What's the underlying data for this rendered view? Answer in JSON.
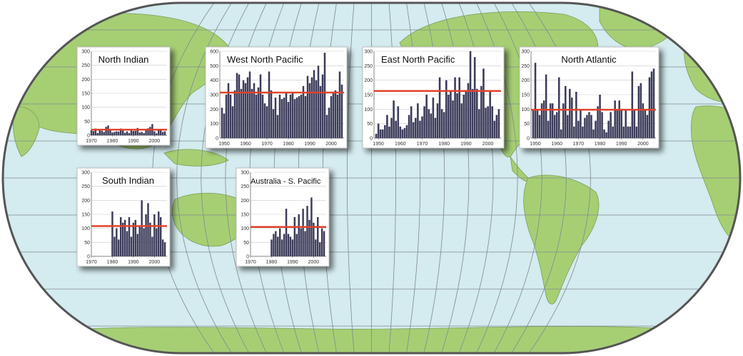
{
  "colors": {
    "ocean": "#d4ebef",
    "land": "#a6cf74",
    "land_edge": "#789f55",
    "grid": "#7f8a8e",
    "bar": "#3b3b5a",
    "average_line": "#e1432b",
    "panel_bg": "#ffffff",
    "gridline": "#c9c9c9"
  },
  "chart_data": [
    {
      "type": "bar",
      "title": "North Indian",
      "xlabel": "",
      "ylabel": "",
      "xlim": [
        1970,
        2006
      ],
      "ylim": [
        0,
        300
      ],
      "x_ticks": [
        "1970",
        "1980",
        "1990",
        "2000"
      ],
      "y_ticks": [
        "0",
        "50",
        "100",
        "150",
        "200",
        "250",
        "300"
      ],
      "x": [
        1970,
        1971,
        1972,
        1973,
        1974,
        1975,
        1976,
        1977,
        1978,
        1979,
        1980,
        1981,
        1982,
        1983,
        1984,
        1985,
        1986,
        1987,
        1988,
        1989,
        1990,
        1991,
        1992,
        1993,
        1994,
        1995,
        1996,
        1997,
        1998,
        1999,
        2000,
        2001,
        2002,
        2003,
        2004,
        2005
      ],
      "values": [
        18,
        15,
        24,
        8,
        22,
        16,
        12,
        30,
        35,
        18,
        10,
        12,
        14,
        13,
        24,
        17,
        9,
        14,
        8,
        20,
        15,
        16,
        26,
        10,
        12,
        8,
        20,
        25,
        30,
        40,
        14,
        7,
        22,
        18,
        12,
        14
      ],
      "average": 20
    },
    {
      "type": "bar",
      "title": "West North Pacific",
      "xlabel": "",
      "ylabel": "",
      "xlim": [
        1948,
        2006
      ],
      "ylim": [
        0,
        600
      ],
      "x_ticks": [
        "1950",
        "1960",
        "1970",
        "1980",
        "1990",
        "2000"
      ],
      "y_ticks": [
        "0",
        "100",
        "200",
        "300",
        "400",
        "500",
        "600"
      ],
      "x": [
        1949,
        1950,
        1951,
        1952,
        1953,
        1954,
        1955,
        1956,
        1957,
        1958,
        1959,
        1960,
        1961,
        1962,
        1963,
        1964,
        1965,
        1966,
        1967,
        1968,
        1969,
        1970,
        1971,
        1972,
        1973,
        1974,
        1975,
        1976,
        1977,
        1978,
        1979,
        1980,
        1981,
        1982,
        1983,
        1984,
        1985,
        1986,
        1987,
        1988,
        1989,
        1990,
        1991,
        1992,
        1993,
        1994,
        1995,
        1996,
        1997,
        1998,
        1999,
        2000,
        2001,
        2002,
        2003,
        2004,
        2005
      ],
      "values": [
        210,
        170,
        300,
        380,
        300,
        220,
        330,
        450,
        440,
        340,
        400,
        380,
        420,
        460,
        340,
        380,
        300,
        350,
        440,
        300,
        240,
        220,
        460,
        330,
        200,
        280,
        160,
        300,
        270,
        280,
        320,
        250,
        300,
        310,
        270,
        280,
        290,
        300,
        360,
        290,
        430,
        380,
        420,
        470,
        400,
        500,
        360,
        440,
        590,
        160,
        210,
        290,
        320,
        330,
        300,
        460,
        370
      ],
      "average": 315
    },
    {
      "type": "bar",
      "title": "East North Pacific",
      "xlabel": "",
      "ylabel": "",
      "xlim": [
        1948,
        2006
      ],
      "ylim": [
        0,
        300
      ],
      "x_ticks": [
        "1950",
        "1960",
        "1970",
        "1980",
        "1990",
        "2000"
      ],
      "y_ticks": [
        "0",
        "50",
        "100",
        "150",
        "200",
        "250",
        "300"
      ],
      "x": [
        1949,
        1950,
        1951,
        1952,
        1953,
        1954,
        1955,
        1956,
        1957,
        1958,
        1959,
        1960,
        1961,
        1962,
        1963,
        1964,
        1965,
        1966,
        1967,
        1968,
        1969,
        1970,
        1971,
        1972,
        1973,
        1974,
        1975,
        1976,
        1977,
        1978,
        1979,
        1980,
        1981,
        1982,
        1983,
        1984,
        1985,
        1986,
        1987,
        1988,
        1989,
        1990,
        1991,
        1992,
        1993,
        1994,
        1995,
        1996,
        1997,
        1998,
        1999,
        2000,
        2001,
        2002,
        2003,
        2004,
        2005
      ],
      "values": [
        15,
        50,
        30,
        30,
        45,
        80,
        40,
        70,
        130,
        60,
        110,
        40,
        30,
        35,
        45,
        80,
        110,
        55,
        70,
        120,
        60,
        75,
        110,
        150,
        100,
        85,
        140,
        70,
        120,
        210,
        100,
        90,
        200,
        150,
        160,
        130,
        210,
        155,
        210,
        120,
        150,
        160,
        190,
        300,
        170,
        280,
        170,
        100,
        180,
        240,
        105,
        110,
        165,
        110,
        60,
        80,
        100
      ],
      "average": 163
    },
    {
      "type": "bar",
      "title": "North Atlantic",
      "xlabel": "",
      "ylabel": "",
      "xlim": [
        1948,
        2006
      ],
      "ylim": [
        0,
        300
      ],
      "x_ticks": [
        "1950",
        "1960",
        "1970",
        "1980",
        "1990",
        "2000"
      ],
      "y_ticks": [
        "0",
        "50",
        "100",
        "150",
        "200",
        "250",
        "300"
      ],
      "x": [
        1949,
        1950,
        1951,
        1952,
        1953,
        1954,
        1955,
        1956,
        1957,
        1958,
        1959,
        1960,
        1961,
        1962,
        1963,
        1964,
        1965,
        1966,
        1967,
        1968,
        1969,
        1970,
        1971,
        1972,
        1973,
        1974,
        1975,
        1976,
        1977,
        1978,
        1979,
        1980,
        1981,
        1982,
        1983,
        1984,
        1985,
        1986,
        1987,
        1988,
        1989,
        1990,
        1991,
        1992,
        1993,
        1994,
        1995,
        1996,
        1997,
        1998,
        1999,
        2000,
        2001,
        2002,
        2003,
        2004,
        2005
      ],
      "values": [
        100,
        260,
        100,
        80,
        120,
        130,
        220,
        60,
        120,
        120,
        80,
        90,
        210,
        30,
        120,
        180,
        80,
        170,
        140,
        40,
        160,
        60,
        100,
        40,
        70,
        80,
        90,
        80,
        30,
        60,
        110,
        150,
        90,
        30,
        20,
        60,
        90,
        40,
        130,
        100,
        130,
        100,
        40,
        100,
        40,
        40,
        230,
        100,
        40,
        180,
        190,
        120,
        100,
        80,
        210,
        230,
        240
      ],
      "average": 98
    },
    {
      "type": "bar",
      "title": "South Indian",
      "xlabel": "",
      "ylabel": "",
      "xlim": [
        1970,
        2006
      ],
      "ylim": [
        0,
        300
      ],
      "x_ticks": [
        "1970",
        "1980",
        "1990",
        "2000"
      ],
      "y_ticks": [
        "0",
        "50",
        "100",
        "150",
        "200",
        "250",
        "300"
      ],
      "x": [
        1980,
        1981,
        1982,
        1983,
        1984,
        1985,
        1986,
        1987,
        1988,
        1989,
        1990,
        1991,
        1992,
        1993,
        1994,
        1995,
        1996,
        1997,
        1998,
        1999,
        2000,
        2001,
        2002,
        2003,
        2004,
        2005
      ],
      "values": [
        160,
        70,
        100,
        60,
        140,
        120,
        130,
        90,
        140,
        70,
        120,
        130,
        80,
        110,
        200,
        100,
        150,
        190,
        120,
        70,
        150,
        100,
        160,
        140,
        60,
        50
      ],
      "average": 108
    },
    {
      "type": "bar",
      "title": "Australia - S. Pacific",
      "xlabel": "",
      "ylabel": "",
      "xlim": [
        1970,
        2006
      ],
      "ylim": [
        0,
        300
      ],
      "x_ticks": [
        "1970",
        "1980",
        "1990",
        "2000"
      ],
      "y_ticks": [
        "0",
        "50",
        "100",
        "150",
        "200",
        "250",
        "300"
      ],
      "x": [
        1980,
        1981,
        1982,
        1983,
        1984,
        1985,
        1986,
        1987,
        1988,
        1989,
        1990,
        1991,
        1992,
        1993,
        1994,
        1995,
        1996,
        1997,
        1998,
        1999,
        2000,
        2001,
        2002,
        2003,
        2004,
        2005
      ],
      "values": [
        60,
        80,
        90,
        70,
        100,
        60,
        80,
        170,
        80,
        70,
        60,
        140,
        80,
        150,
        100,
        170,
        90,
        180,
        130,
        210,
        120,
        60,
        140,
        50,
        100,
        90
      ],
      "average": 105
    }
  ]
}
